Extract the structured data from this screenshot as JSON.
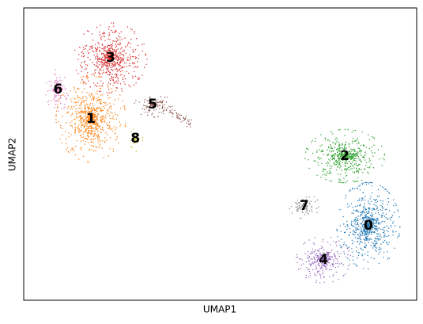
{
  "chart_data": {
    "type": "scatter",
    "xlabel": "UMAP1",
    "ylabel": "UMAP2",
    "categories": [
      "0",
      "1",
      "2",
      "3",
      "4",
      "5",
      "6",
      "7",
      "8"
    ],
    "x": [
      8.77,
      1.71,
      8.17,
      2.21,
      7.63,
      3.28,
      0.87,
      7.14,
      2.84
    ],
    "y": [
      2.55,
      6.21,
      4.93,
      8.29,
      1.38,
      6.69,
      7.21,
      3.22,
      5.53
    ],
    "colors": [
      "#1f77b4",
      "#ff7f0e",
      "#2ca02c",
      "#d62728",
      "#9467bd",
      "#8c564b",
      "#e377c2",
      "#7f7f7f",
      "#bcbd22"
    ],
    "xlim": [
      0,
      10
    ],
    "ylim": [
      0,
      10
    ]
  }
}
